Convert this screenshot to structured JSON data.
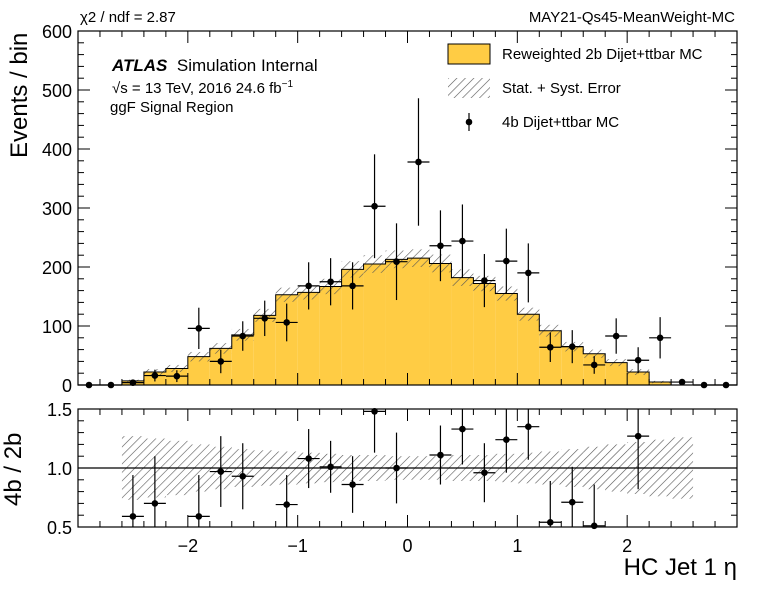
{
  "header": {
    "chi2_label": "χ2 / ndf = 2.87",
    "tag": "MAY21-Qs45-MeanWeight-MC"
  },
  "annotations": {
    "atlas": "ATLAS",
    "atlas_suffix": "Simulation Internal",
    "energy_sqrt": "√s",
    "energy_rest": " = 13 TeV, 2016 24.6 fb",
    "energy_sup": "−1",
    "region": "ggF Signal Region"
  },
  "legend": {
    "entries": [
      "Reweighted 2b Dijet+ttbar MC",
      "Stat. + Syst. Error",
      "4b Dijet+ttbar MC"
    ]
  },
  "colors": {
    "fill": "#ffcc44",
    "marker": "#000000",
    "hatch": "#555555"
  },
  "axes": {
    "ylabel_main": "Events / bin",
    "ylabel_ratio": "4b / 2b",
    "xlabel": "HC Jet 1 η"
  },
  "chart_data": [
    {
      "type": "histogram",
      "panel": "main",
      "xlim": [
        -3,
        3
      ],
      "ylim": [
        0,
        600
      ],
      "xticks": [
        -2,
        -1,
        0,
        1,
        2
      ],
      "yticks": [
        0,
        100,
        200,
        300,
        400,
        500,
        600
      ],
      "bin_edges": [
        -2.6,
        -2.4,
        -2.2,
        -2.0,
        -1.8,
        -1.6,
        -1.4,
        -1.2,
        -1.0,
        -0.8,
        -0.6,
        -0.4,
        -0.2,
        0.0,
        0.2,
        0.4,
        0.6,
        0.8,
        1.0,
        1.2,
        1.4,
        1.6,
        1.8,
        2.0,
        2.2,
        2.4,
        2.6
      ],
      "series": [
        {
          "name": "Reweighted 2b Dijet+ttbar MC",
          "style": "filled-step",
          "values": [
            7,
            22,
            28,
            48,
            62,
            85,
            118,
            153,
            157,
            167,
            196,
            205,
            213,
            215,
            206,
            182,
            172,
            155,
            120,
            92,
            65,
            53,
            38,
            22,
            5,
            0
          ]
        },
        {
          "name": "Stat. + Syst. Error",
          "style": "hatched-band",
          "values": [
            7,
            22,
            28,
            48,
            62,
            85,
            118,
            153,
            157,
            167,
            196,
            205,
            213,
            215,
            206,
            182,
            172,
            155,
            120,
            92,
            65,
            53,
            38,
            22,
            5,
            0
          ],
          "errors": [
            2,
            5,
            6,
            8,
            9,
            10,
            11,
            12,
            12,
            13,
            14,
            15,
            15,
            15,
            15,
            14,
            13,
            12,
            11,
            10,
            8,
            7,
            6,
            5,
            2,
            0
          ]
        },
        {
          "name": "4b Dijet+ttbar MC",
          "style": "points",
          "x": [
            -2.9,
            -2.7,
            -2.5,
            -2.3,
            -2.1,
            -1.9,
            -1.7,
            -1.5,
            -1.3,
            -1.1,
            -0.9,
            -0.7,
            -0.5,
            -0.3,
            -0.1,
            0.1,
            0.3,
            0.5,
            0.7,
            0.9,
            1.1,
            1.3,
            1.5,
            1.7,
            1.9,
            2.1,
            2.3,
            2.5,
            2.7,
            2.9
          ],
          "y": [
            0,
            0,
            4,
            16,
            15,
            96,
            40,
            83,
            113,
            106,
            168,
            175,
            168,
            303,
            209,
            378,
            236,
            244,
            177,
            210,
            190,
            64,
            65,
            34,
            83,
            42,
            80,
            5,
            0,
            0
          ],
          "yerr": [
            0,
            0,
            4,
            10,
            10,
            35,
            20,
            25,
            30,
            32,
            40,
            40,
            40,
            88,
            65,
            108,
            60,
            62,
            45,
            55,
            50,
            25,
            28,
            15,
            30,
            22,
            35,
            4,
            0,
            0
          ]
        }
      ]
    },
    {
      "type": "ratio",
      "panel": "ratio",
      "xlim": [
        -3,
        3
      ],
      "ylim": [
        0.5,
        1.5
      ],
      "yticks": [
        0.5,
        1.0,
        1.5
      ],
      "reference_line": 1.0,
      "band": {
        "x_range": [
          -2.6,
          2.6
        ],
        "half_width": [
          0.27,
          0.25,
          0.23,
          0.2,
          0.18,
          0.16,
          0.15,
          0.14,
          0.13,
          0.12,
          0.11,
          0.11,
          0.1,
          0.1,
          0.1,
          0.11,
          0.11,
          0.12,
          0.13,
          0.14,
          0.16,
          0.18,
          0.2,
          0.22,
          0.24,
          0.26
        ]
      },
      "points": {
        "x": [
          -2.7,
          -2.5,
          -2.3,
          -2.1,
          -1.9,
          -1.7,
          -1.5,
          -1.3,
          -1.1,
          -0.9,
          -0.7,
          -0.5,
          -0.3,
          -0.1,
          0.1,
          0.3,
          0.5,
          0.7,
          0.9,
          1.1,
          1.3,
          1.5,
          1.7,
          1.9,
          2.1,
          2.3,
          2.5
        ],
        "y": [
          null,
          0.59,
          0.7,
          null,
          0.59,
          0.97,
          0.93,
          null,
          0.69,
          1.08,
          1.01,
          0.86,
          1.48,
          1.0,
          null,
          1.11,
          1.33,
          0.96,
          1.24,
          1.35,
          0.54,
          0.71,
          0.51,
          null,
          1.27,
          null,
          null
        ],
        "yerr": [
          null,
          0.35,
          0.4,
          null,
          0.35,
          0.3,
          0.28,
          null,
          0.25,
          0.25,
          0.22,
          0.24,
          0.35,
          0.3,
          null,
          0.25,
          0.3,
          0.25,
          0.28,
          0.28,
          0.35,
          0.3,
          0.35,
          null,
          0.45,
          null,
          null
        ]
      }
    }
  ]
}
